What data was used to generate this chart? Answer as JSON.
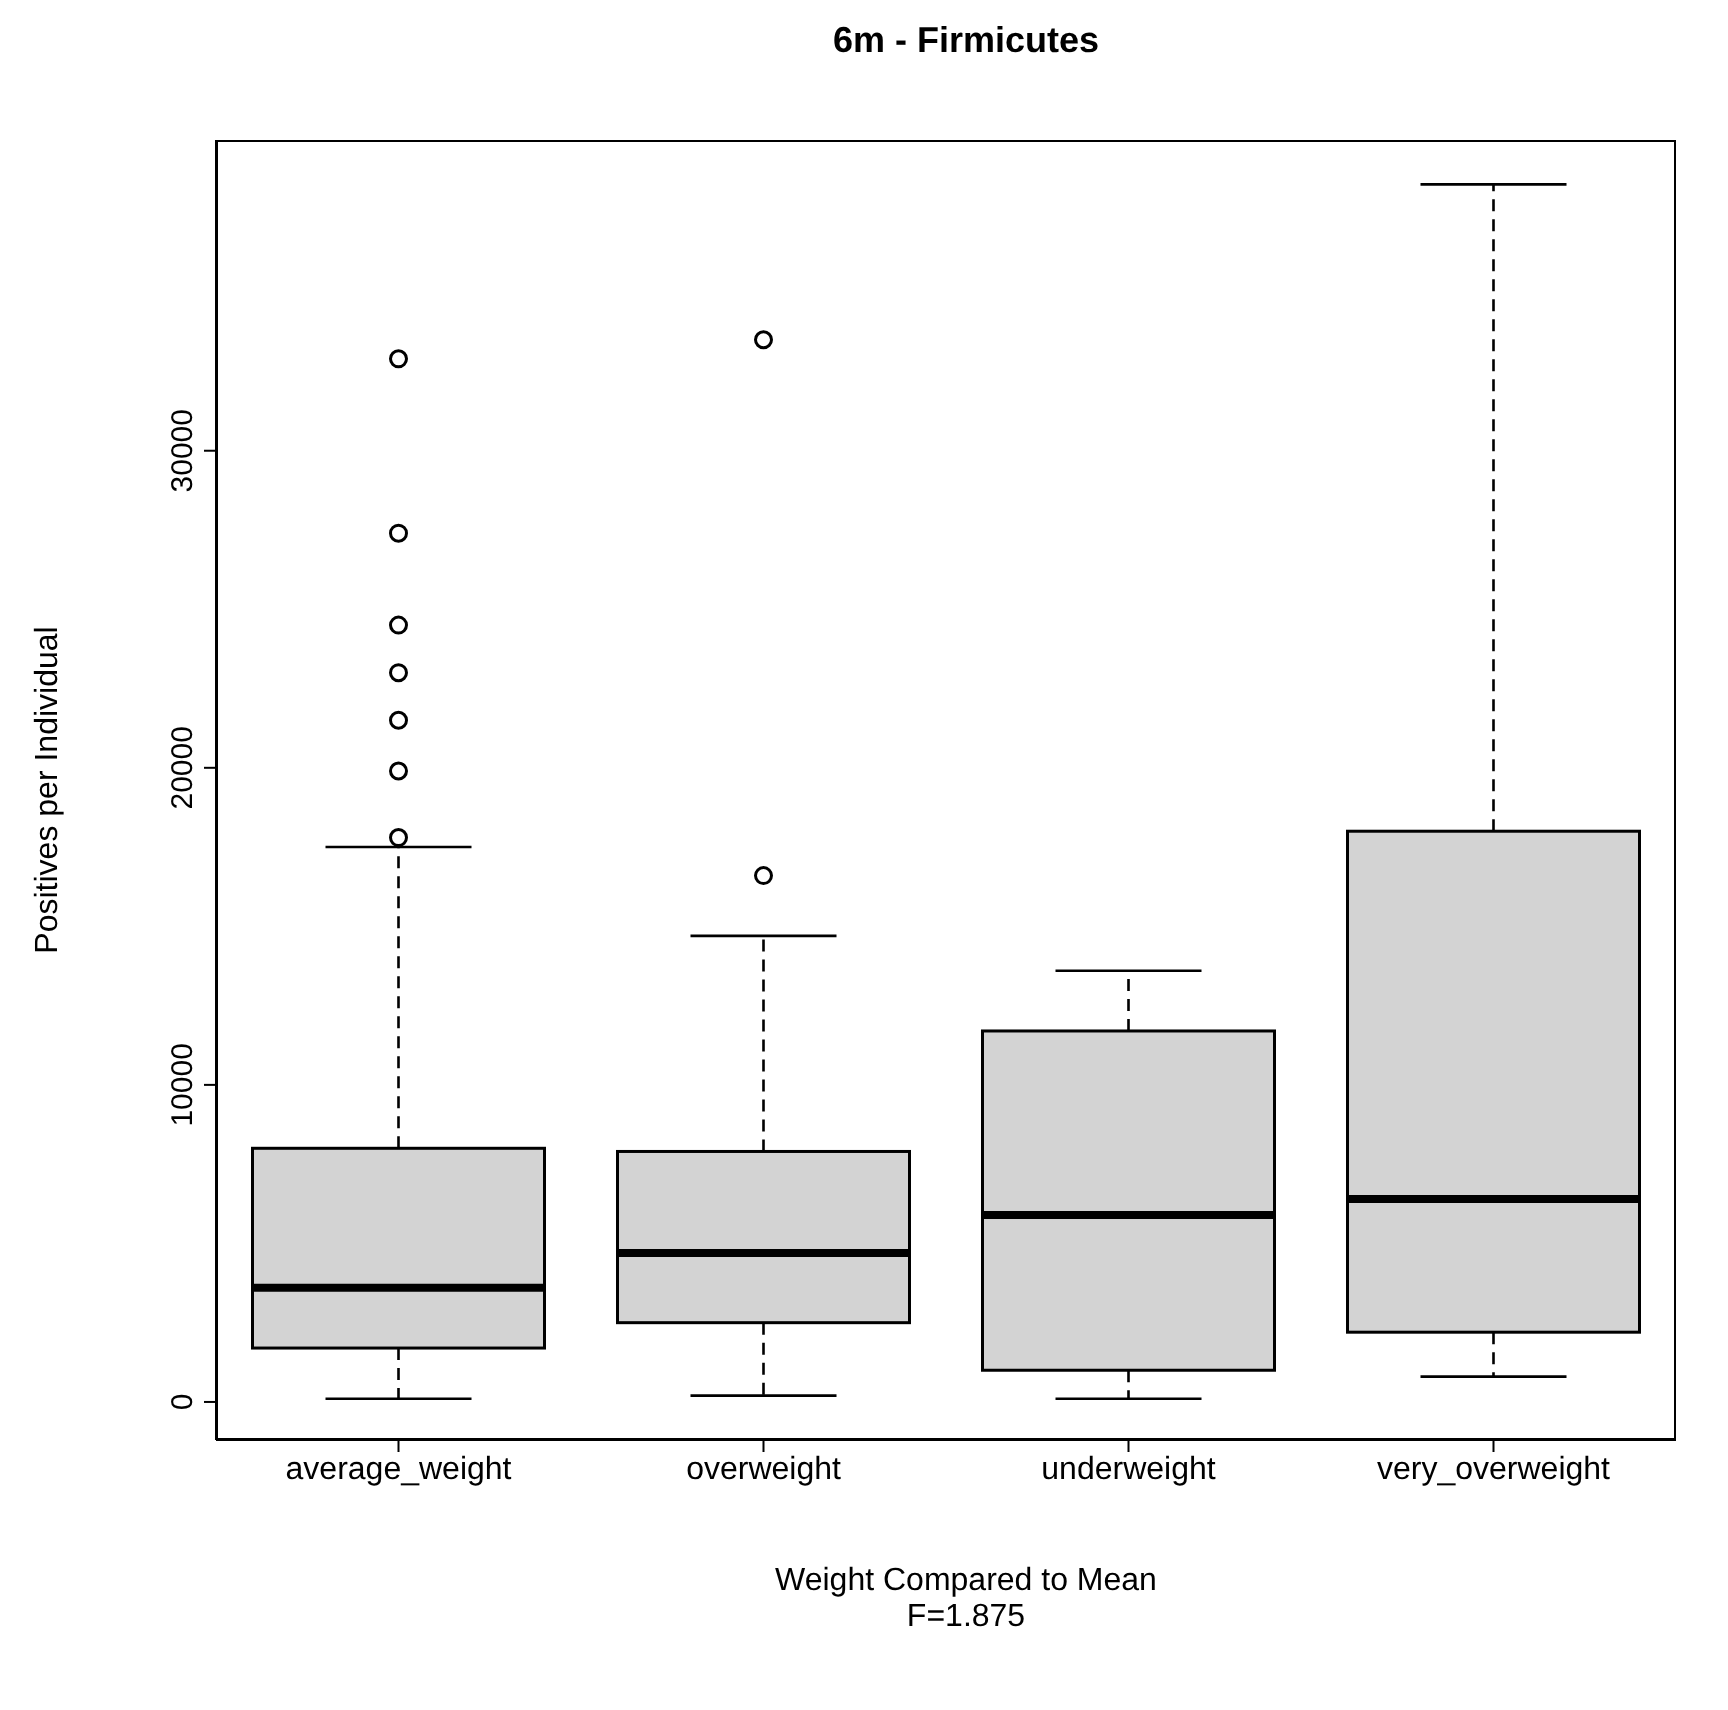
{
  "chart_data": {
    "type": "box",
    "title": "6m - Firmicutes",
    "xlabel": "Weight Compared to Mean",
    "ylabel": "Positives per Individual",
    "annotations": [
      "F=1.875"
    ],
    "categories": [
      "average_weight",
      "overweight",
      "underweight",
      "very_overweight"
    ],
    "color": "#d3d3d3",
    "boxes": [
      {
        "low": 100,
        "q1": 1700,
        "median": 3600,
        "q3": 8000,
        "high": 17500,
        "outliers": [
          17800,
          19900,
          21500,
          23000,
          24500,
          27400,
          32900
        ]
      },
      {
        "low": 200,
        "q1": 2500,
        "median": 4700,
        "q3": 7900,
        "high": 14700,
        "outliers": [
          16600,
          33500
        ]
      },
      {
        "low": 100,
        "q1": 1000,
        "median": 5900,
        "q3": 11700,
        "high": 13600
      },
      {
        "low": 800,
        "q1": 2200,
        "median": 6400,
        "q3": 18000,
        "high": 38400
      }
    ],
    "ylim": [
      -1200,
      39800
    ],
    "yticks": [
      0,
      10000,
      20000,
      30000
    ],
    "grid": false
  }
}
